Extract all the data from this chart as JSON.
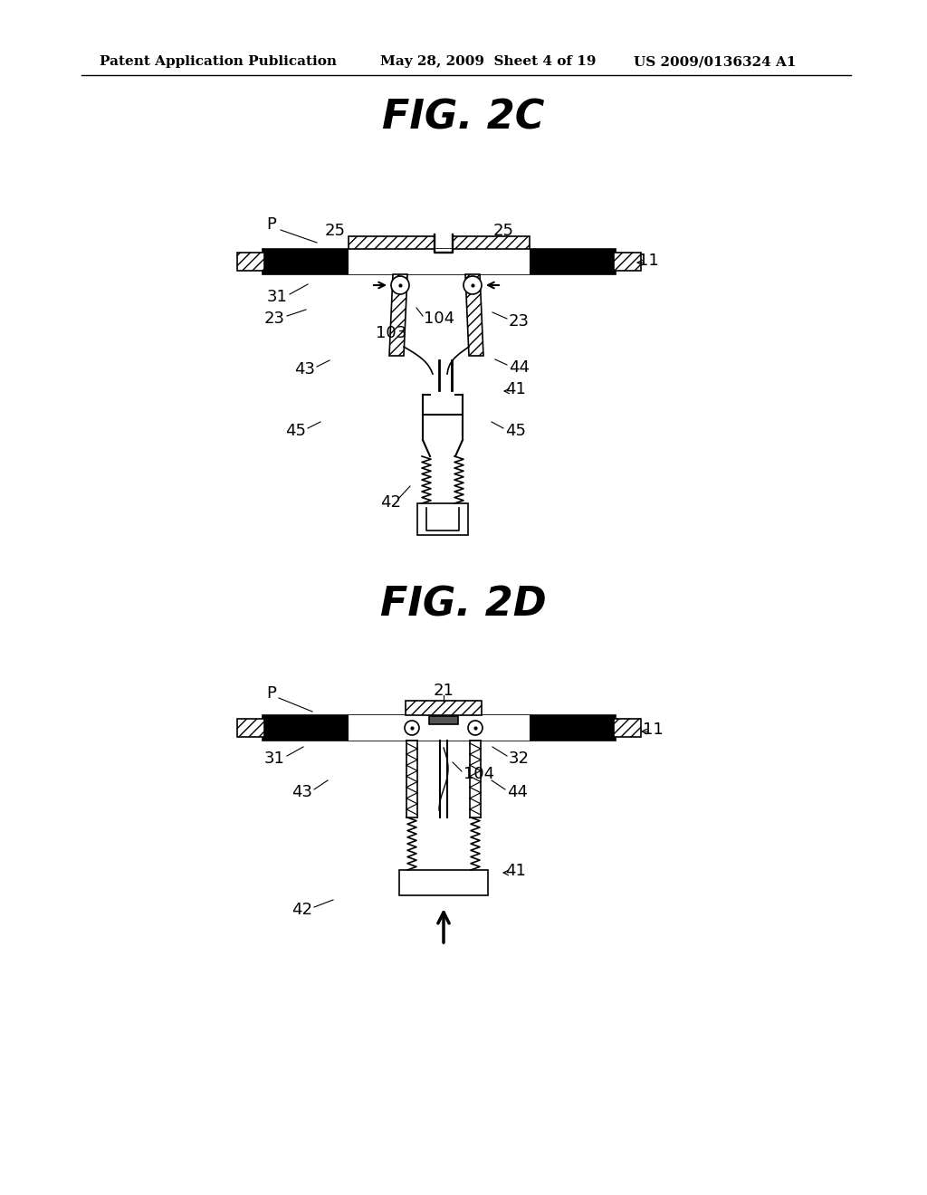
{
  "background_color": "#ffffff",
  "header_text": "Patent Application Publication",
  "header_date": "May 28, 2009  Sheet 4 of 19",
  "header_patent": "US 2009/0136324 A1",
  "fig2c_title": "FIG. 2C",
  "fig2d_title": "FIG. 2D",
  "text_color": "#000000",
  "line_color": "#000000"
}
